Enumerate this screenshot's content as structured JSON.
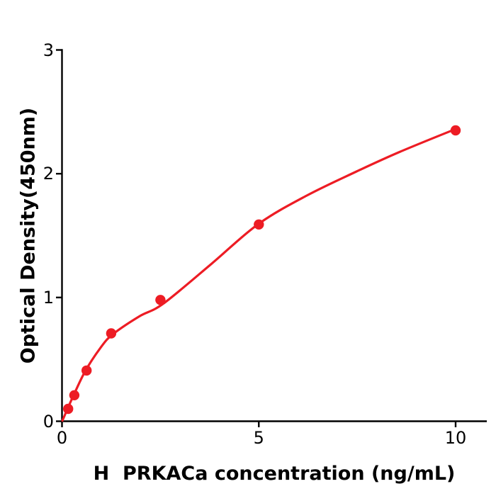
{
  "figure": {
    "background": "#ffffff",
    "accent_red": "#ed1c24",
    "axis_color": "#000000"
  },
  "chart_data": {
    "type": "scatter",
    "title": "",
    "xlabel": "H  PRKACa concentration (ng/mL)",
    "ylabel": "Optical Density(450nm)",
    "xlim": [
      0,
      10.8
    ],
    "ylim": [
      0,
      3
    ],
    "grid": false,
    "legend": "none",
    "x_ticks": [
      {
        "value": 0,
        "label": "0"
      },
      {
        "value": 5,
        "label": "5"
      },
      {
        "value": 10,
        "label": "10"
      }
    ],
    "y_ticks": [
      {
        "value": 0,
        "label": "0"
      },
      {
        "value": 1,
        "label": "1"
      },
      {
        "value": 2,
        "label": "2"
      },
      {
        "value": 3,
        "label": "3"
      }
    ],
    "series": [
      {
        "name": "standard-data-points",
        "kind": "scatter",
        "color": "#ed1c24",
        "marker": "circle",
        "points": [
          [
            0.156,
            0.1
          ],
          [
            0.3125,
            0.21
          ],
          [
            0.625,
            0.41
          ],
          [
            1.25,
            0.71
          ],
          [
            2.5,
            0.98
          ],
          [
            5,
            1.59
          ],
          [
            10,
            2.35
          ]
        ]
      },
      {
        "name": "fit-curve",
        "kind": "line",
        "color": "#ed1c24",
        "points": [
          [
            0.01,
            0.005
          ],
          [
            0.144,
            0.103
          ],
          [
            0.306,
            0.218
          ],
          [
            0.594,
            0.407
          ],
          [
            0.971,
            0.59
          ],
          [
            1.277,
            0.699
          ],
          [
            1.96,
            0.847
          ],
          [
            2.572,
            0.95
          ],
          [
            3.795,
            1.271
          ],
          [
            4.982,
            1.592
          ],
          [
            6.205,
            1.821
          ],
          [
            7.464,
            2.015
          ],
          [
            8.579,
            2.176
          ],
          [
            9.982,
            2.359
          ]
        ]
      }
    ]
  }
}
